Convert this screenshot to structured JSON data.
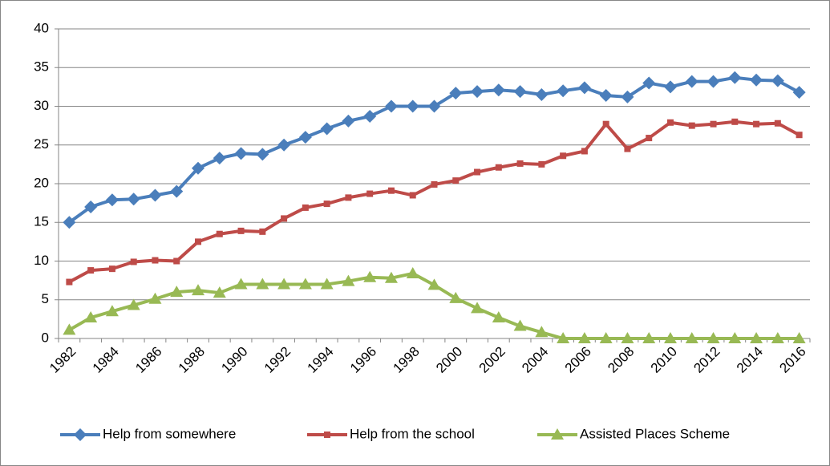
{
  "chart_data": {
    "type": "line",
    "categories": [
      "1982",
      null,
      "1984",
      null,
      "1986",
      null,
      "1988",
      null,
      "1990",
      null,
      "1992",
      null,
      "1994",
      null,
      "1996",
      null,
      "1998",
      null,
      "2000",
      null,
      "2002",
      null,
      "2004",
      null,
      "2006",
      null,
      "2008",
      null,
      "2010",
      null,
      "2012",
      null,
      "2014",
      null,
      "2016"
    ],
    "series": [
      {
        "name": "Help from somewhere",
        "color": "#4a7ebb",
        "marker": "diamond",
        "values": [
          15,
          17,
          17.9,
          18,
          18.5,
          19,
          22,
          23.3,
          23.9,
          23.8,
          25,
          26,
          27.1,
          28.1,
          28.7,
          30,
          30,
          30,
          31.7,
          31.9,
          32.1,
          31.9,
          31.5,
          32,
          32.4,
          31.4,
          31.2,
          33,
          32.5,
          33.2,
          33.2,
          33.7,
          33.4,
          33.3,
          31.8
        ]
      },
      {
        "name": "Help from the school",
        "color": "#be4b48",
        "marker": "square",
        "values": [
          7.3,
          8.8,
          9,
          9.9,
          10.1,
          10,
          12.5,
          13.5,
          13.9,
          13.8,
          15.5,
          16.9,
          17.4,
          18.2,
          18.7,
          19.1,
          18.5,
          19.9,
          20.4,
          21.5,
          22.1,
          22.6,
          22.5,
          23.6,
          24.2,
          27.7,
          24.5,
          25.9,
          27.9,
          27.5,
          27.7,
          28,
          27.7,
          27.8,
          26.3
        ]
      },
      {
        "name": "Assisted Places Scheme",
        "color": "#98b954",
        "marker": "triangle",
        "values": [
          1.1,
          2.7,
          3.5,
          4.3,
          5.1,
          6,
          6.2,
          5.9,
          7,
          7,
          7,
          7,
          7,
          7.4,
          7.9,
          7.8,
          8.4,
          6.9,
          5.2,
          3.9,
          2.7,
          1.6,
          0.8,
          0,
          0,
          0,
          0,
          0,
          0,
          0,
          0,
          0,
          0,
          0,
          0
        ]
      }
    ],
    "ylim": [
      0,
      40
    ],
    "yticks": [
      0,
      5,
      10,
      15,
      20,
      25,
      30,
      35,
      40
    ],
    "grid": true,
    "legend": "bottom"
  }
}
